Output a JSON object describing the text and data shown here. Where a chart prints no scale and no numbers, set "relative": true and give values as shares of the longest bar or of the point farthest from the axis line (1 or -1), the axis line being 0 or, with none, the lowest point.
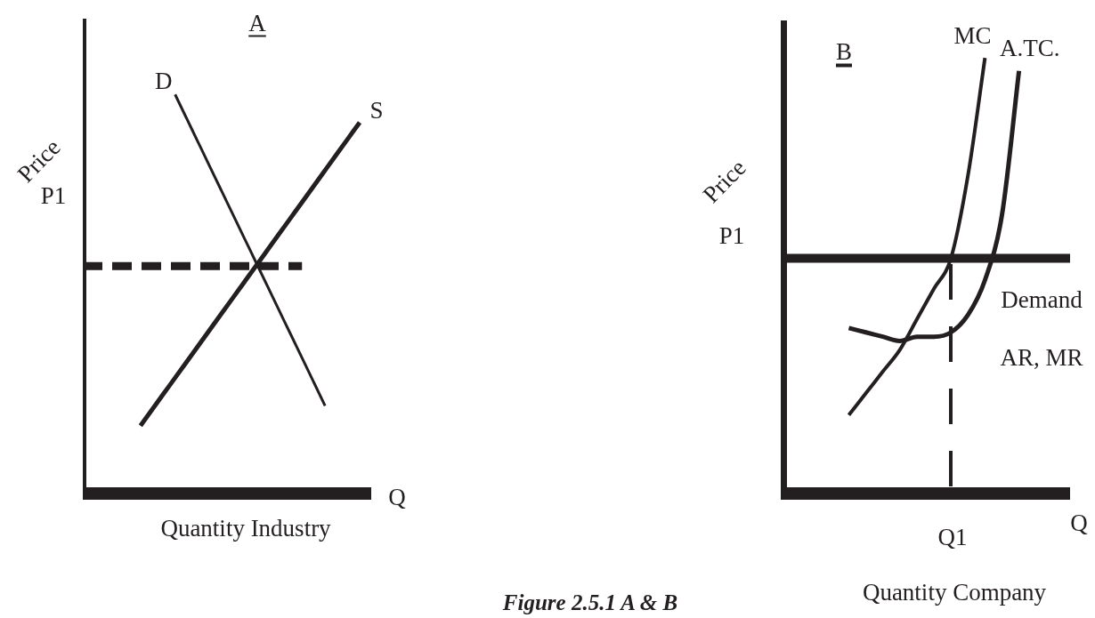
{
  "chart_data": [
    {
      "type": "line",
      "title": "A",
      "xlabel": "Quantity Industry",
      "ylabel": "Price",
      "relative": true,
      "marker": "none",
      "annotations": [
        "P1",
        "Q"
      ],
      "categories": [
        null,
        null,
        null,
        null,
        null,
        null,
        null,
        null,
        null,
        null,
        null,
        null,
        null,
        null,
        null,
        null,
        null,
        null,
        null,
        null,
        null,
        null,
        null,
        null,
        null,
        null
      ],
      "series": [
        {
          "name": "D",
          "color": "#231f20",
          "values": [
            null,
            null,
            null,
            null,
            null,
            null,
            null,
            null,
            1,
            0.94,
            0.88,
            0.82,
            0.76,
            0.7,
            0.64,
            0.58,
            0.52,
            0.46,
            0.4,
            0.34,
            0.28,
            0.22,
            null,
            null,
            null,
            null
          ]
        },
        {
          "name": "S",
          "color": "#231f20",
          "values": [
            null,
            null,
            null,
            null,
            null,
            0.17,
            0.21,
            0.25,
            0.29,
            0.33,
            0.37,
            0.41,
            0.45,
            0.49,
            0.53,
            0.57,
            0.61,
            0.65,
            0.69,
            0.73,
            0.77,
            0.81,
            0.85,
            0.89,
            0.93,
            null
          ]
        },
        {
          "color": "#231f20",
          "line_style": "dashed",
          "values": [
            0.57,
            0.57,
            0.57,
            0.57,
            0.57,
            0.57,
            0.57,
            0.57,
            0.57,
            0.57,
            0.57,
            0.57,
            0.57,
            0.57,
            0.57,
            0.57,
            0.57,
            0.57,
            0.57,
            0.57,
            null,
            null,
            null,
            null,
            null,
            null
          ]
        }
      ]
    },
    {
      "type": "line",
      "title": "B",
      "xlabel": "Quantity Company",
      "ylabel": "Price",
      "relative": true,
      "marker": "none",
      "annotations": [
        "P1",
        "Q",
        "Q1",
        "Figure 2.5.1 A & B"
      ],
      "categories": [
        null,
        null,
        null,
        null,
        null,
        null,
        null,
        null,
        null,
        null,
        null,
        null,
        null,
        null,
        null,
        null,
        null,
        null
      ],
      "series": [
        {
          "name": "Demand AR, MR",
          "color": "#231f20",
          "values": [
            0.54,
            0.54,
            0.54,
            0.54,
            0.54,
            0.54,
            0.54,
            0.54,
            0.54,
            0.54,
            0.54,
            0.54,
            0.54,
            0.54,
            0.54,
            0.54,
            0.54,
            0.54
          ]
        },
        {
          "name": "MC",
          "color": "#231f20",
          "values": [
            null,
            null,
            null,
            null,
            0.18,
            0.23,
            0.28,
            0.33,
            0.4,
            0.47,
            0.54,
            0.73,
            1,
            null,
            null,
            null,
            null,
            null
          ]
        },
        {
          "name": "A.TC.",
          "color": "#231f20",
          "values": [
            null,
            null,
            null,
            null,
            0.38,
            0.37,
            0.36,
            0.35,
            0.36,
            0.36,
            0.37,
            0.41,
            0.49,
            0.64,
            0.97,
            null,
            null,
            null
          ]
        }
      ]
    }
  ]
}
